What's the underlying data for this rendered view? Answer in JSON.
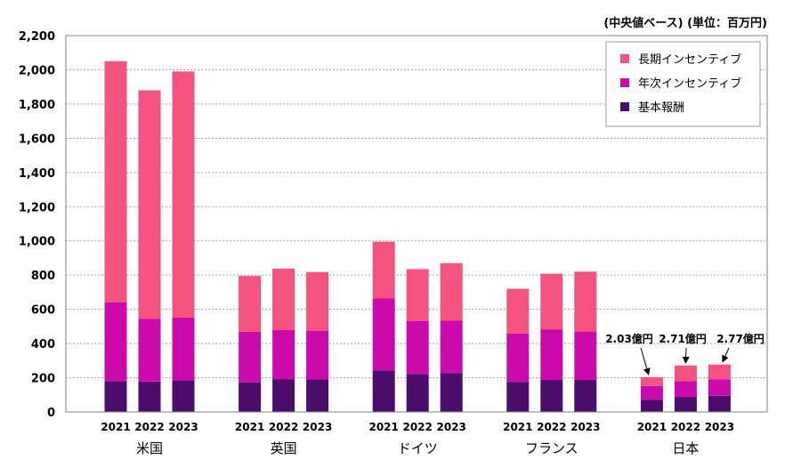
{
  "chart_data": {
    "type": "bar",
    "stacked": true,
    "unit_label": "(中央値ベース) (単位：百万円)",
    "ylim": [
      0,
      2200
    ],
    "yticks": [
      "0",
      "200",
      "400",
      "600",
      "800",
      "1,000",
      "1,200",
      "1,400",
      "1,600",
      "1,800",
      "2,000",
      "2,200"
    ],
    "ytick_values": [
      0,
      200,
      400,
      600,
      800,
      1000,
      1200,
      1400,
      1600,
      1800,
      2000,
      2200
    ],
    "grid": true,
    "legend_position": "top-right",
    "groups": [
      {
        "name": "米国",
        "years": [
          "2021",
          "2022",
          "2023"
        ]
      },
      {
        "name": "英国",
        "years": [
          "2021",
          "2022",
          "2023"
        ]
      },
      {
        "name": "ドイツ",
        "years": [
          "2021",
          "2022",
          "2023"
        ]
      },
      {
        "name": "フランス",
        "years": [
          "2021",
          "2022",
          "2023"
        ]
      },
      {
        "name": "日本",
        "years": [
          "2021",
          "2022",
          "2023"
        ]
      }
    ],
    "series": [
      {
        "name": "基本報酬",
        "color": "#4b0c6b",
        "values": [
          180,
          178,
          182,
          172,
          192,
          190,
          243,
          222,
          228,
          176,
          187,
          187,
          72,
          88,
          95
        ]
      },
      {
        "name": "年次インセンティブ",
        "color": "#cc0aac",
        "values": [
          460,
          367,
          370,
          297,
          288,
          285,
          420,
          310,
          305,
          282,
          296,
          283,
          80,
          92,
          95
        ]
      },
      {
        "name": "長期インセンティブ",
        "color": "#f4527f",
        "values": [
          1410,
          1335,
          1438,
          326,
          358,
          343,
          332,
          303,
          337,
          262,
          325,
          350,
          51,
          91,
          87
        ]
      }
    ],
    "legend_order": [
      "長期インセンティブ",
      "年次インセンティブ",
      "基本報酬"
    ],
    "annotations": [
      {
        "text": "2.03億円",
        "group": 4,
        "bar": 0
      },
      {
        "text": "2.71億円",
        "group": 4,
        "bar": 1
      },
      {
        "text": "2.77億円",
        "group": 4,
        "bar": 2
      }
    ]
  }
}
